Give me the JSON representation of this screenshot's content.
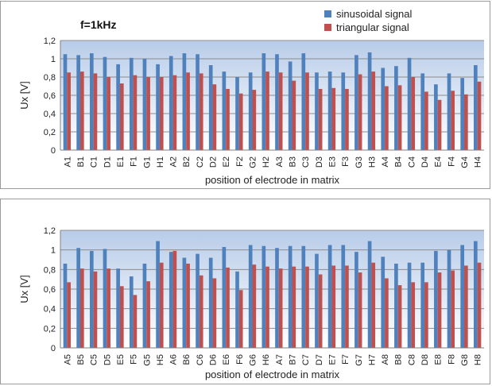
{
  "colors": {
    "sinusoidal": "#4F81BD",
    "triangular": "#C0504D",
    "plot_top": "#B8CCE8",
    "plot_bottom": "#ffffff",
    "grid": "#8c8c8c"
  },
  "chart_data": [
    {
      "type": "bar",
      "annotation": "f=1kHz",
      "xlabel": "position of electrode in matrix",
      "ylabel": "Ux [V]",
      "ylim": [
        0,
        1.2
      ],
      "yticks": [
        "0",
        "0,2",
        "0,4",
        "0,6",
        "0,8",
        "1",
        "1,2"
      ],
      "grid": true,
      "legend_position": "top-right",
      "legend_labels": [
        "sinusoidal signal",
        "triangular signal"
      ],
      "categories": [
        "A1",
        "B1",
        "C1",
        "D1",
        "E1",
        "F1",
        "G1",
        "H1",
        "A2",
        "B2",
        "C2",
        "D2",
        "E2",
        "F2",
        "G2",
        "H2",
        "A3",
        "B3",
        "C3",
        "D3",
        "E3",
        "F3",
        "G3",
        "H3",
        "A4",
        "B4",
        "C4",
        "D4",
        "E4",
        "F4",
        "G4",
        "H4"
      ],
      "series": [
        {
          "name": "sinusoidal signal",
          "values": [
            1.05,
            1.04,
            1.06,
            1.02,
            0.94,
            1.01,
            1.0,
            0.94,
            1.03,
            1.06,
            1.05,
            0.93,
            0.86,
            0.8,
            0.85,
            1.06,
            1.05,
            0.97,
            1.06,
            0.85,
            0.86,
            0.85,
            1.04,
            1.07,
            0.9,
            0.92,
            1.01,
            0.84,
            0.72,
            0.84,
            0.79,
            0.93
          ]
        },
        {
          "name": "triangular signal",
          "values": [
            0.85,
            0.86,
            0.84,
            0.8,
            0.73,
            0.82,
            0.8,
            0.8,
            0.82,
            0.85,
            0.84,
            0.72,
            0.67,
            0.62,
            0.66,
            0.86,
            0.85,
            0.76,
            0.85,
            0.67,
            0.68,
            0.67,
            0.83,
            0.86,
            0.7,
            0.71,
            0.8,
            0.64,
            0.55,
            0.65,
            0.61,
            0.75
          ]
        }
      ]
    },
    {
      "type": "bar",
      "xlabel": "position of electrode in matrix",
      "ylabel": "Ux [V]",
      "ylim": [
        0,
        1.2
      ],
      "yticks": [
        "0",
        "0,2",
        "0,4",
        "0,6",
        "0,8",
        "1",
        "1,2"
      ],
      "grid": true,
      "categories": [
        "A5",
        "B5",
        "C5",
        "D5",
        "E5",
        "F5",
        "G5",
        "H5",
        "A6",
        "B6",
        "C6",
        "D6",
        "E6",
        "F6",
        "G6",
        "H6",
        "A7",
        "B7",
        "C7",
        "D7",
        "E7",
        "F7",
        "G7",
        "H7",
        "A8",
        "B8",
        "C8",
        "D8",
        "E8",
        "F8",
        "G8",
        "H8"
      ],
      "series": [
        {
          "name": "sinusoidal signal",
          "values": [
            0.86,
            1.02,
            0.99,
            1.01,
            0.81,
            0.73,
            0.86,
            1.09,
            0.98,
            0.92,
            0.96,
            0.92,
            1.03,
            0.78,
            1.05,
            1.04,
            1.02,
            1.04,
            1.04,
            0.96,
            1.05,
            1.05,
            0.98,
            1.09,
            0.93,
            0.86,
            0.87,
            0.87,
            0.99,
            1.0,
            1.05,
            1.09
          ]
        },
        {
          "name": "triangular signal",
          "values": [
            0.67,
            0.81,
            0.78,
            0.81,
            0.63,
            0.54,
            0.68,
            0.87,
            0.99,
            0.86,
            0.74,
            0.71,
            0.82,
            0.59,
            0.85,
            0.83,
            0.81,
            0.83,
            0.83,
            0.75,
            0.84,
            0.84,
            0.77,
            0.87,
            0.71,
            0.64,
            0.67,
            0.67,
            0.77,
            0.79,
            0.84,
            0.87
          ]
        }
      ]
    }
  ]
}
